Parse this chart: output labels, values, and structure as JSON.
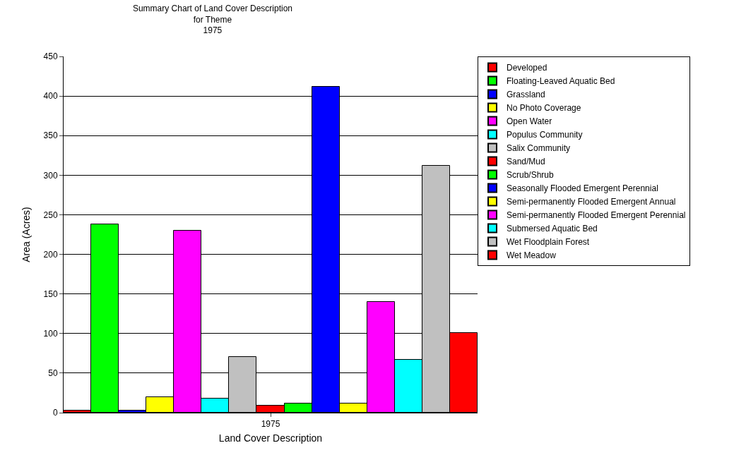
{
  "chart_data": {
    "type": "bar",
    "title": "Summary Chart of Land Cover Description\nfor Theme\n1975",
    "xlabel": "Land Cover Description",
    "ylabel": "Area (Acres)",
    "categories": [
      "1975"
    ],
    "series": [
      {
        "name": "Developed",
        "color": "#ff0000",
        "values": [
          3
        ]
      },
      {
        "name": "Floating-Leaved Aquatic Bed",
        "color": "#00ff00",
        "values": [
          238
        ]
      },
      {
        "name": "Grassland",
        "color": "#0000ff",
        "values": [
          3
        ]
      },
      {
        "name": "No Photo Coverage",
        "color": "#ffff00",
        "values": [
          20
        ]
      },
      {
        "name": "Open Water",
        "color": "#ff00ff",
        "values": [
          230
        ]
      },
      {
        "name": "Populus Community",
        "color": "#00ffff",
        "values": [
          18
        ]
      },
      {
        "name": "Salix Community",
        "color": "#c0c0c0",
        "values": [
          70
        ]
      },
      {
        "name": "Sand/Mud",
        "color": "#ff0000",
        "values": [
          9
        ]
      },
      {
        "name": "Scrub/Shrub",
        "color": "#00ff00",
        "values": [
          12
        ]
      },
      {
        "name": "Seasonally Flooded Emergent Perennial",
        "color": "#0000ff",
        "values": [
          412
        ]
      },
      {
        "name": "Semi-permanently Flooded Emergent Annual",
        "color": "#ffff00",
        "values": [
          12
        ]
      },
      {
        "name": "Semi-permanently Flooded Emergent Perennial",
        "color": "#ff00ff",
        "values": [
          140
        ]
      },
      {
        "name": "Submersed Aquatic Bed",
        "color": "#00ffff",
        "values": [
          67
        ]
      },
      {
        "name": "Wet Floodplain Forest",
        "color": "#c0c0c0",
        "values": [
          312
        ]
      },
      {
        "name": "Wet Meadow",
        "color": "#ff0000",
        "values": [
          101
        ]
      }
    ],
    "ylim": [
      0,
      450
    ],
    "yticks": [
      0,
      50,
      100,
      150,
      200,
      250,
      300,
      350,
      400,
      450
    ],
    "grid": "y",
    "legend": "top right"
  }
}
